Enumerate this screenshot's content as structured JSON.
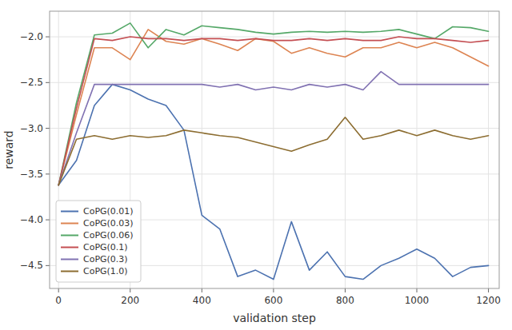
{
  "chart_data": {
    "type": "line",
    "xlabel": "validation step",
    "ylabel": "reward",
    "x": [
      0,
      50,
      100,
      150,
      200,
      250,
      300,
      350,
      400,
      450,
      500,
      550,
      600,
      650,
      700,
      750,
      800,
      850,
      900,
      950,
      1000,
      1050,
      1100,
      1150,
      1200
    ],
    "series": [
      {
        "name": "CoPG(0.01)",
        "color": "#4c72b0",
        "values": [
          -3.62,
          -3.35,
          -2.75,
          -2.52,
          -2.58,
          -2.68,
          -2.75,
          -3.02,
          -3.95,
          -4.1,
          -4.62,
          -4.55,
          -4.65,
          -4.02,
          -4.55,
          -4.35,
          -4.62,
          -4.65,
          -4.5,
          -4.42,
          -4.32,
          -4.42,
          -4.62,
          -4.52,
          -4.5
        ]
      },
      {
        "name": "CoPG(0.03)",
        "color": "#dd8452",
        "values": [
          -3.62,
          -2.85,
          -2.12,
          -2.12,
          -2.25,
          -1.92,
          -2.05,
          -2.08,
          -2.02,
          -2.08,
          -2.15,
          -2.02,
          -2.05,
          -2.18,
          -2.12,
          -2.18,
          -2.22,
          -2.12,
          -2.12,
          -2.06,
          -2.12,
          -2.06,
          -2.12,
          -2.22,
          -2.32
        ]
      },
      {
        "name": "CoPG(0.06)",
        "color": "#55a868",
        "values": [
          -3.62,
          -2.72,
          -1.98,
          -1.96,
          -1.85,
          -2.12,
          -1.92,
          -1.98,
          -1.88,
          -1.9,
          -1.92,
          -1.95,
          -1.97,
          -1.95,
          -1.94,
          -1.95,
          -1.94,
          -1.95,
          -1.94,
          -1.92,
          -1.97,
          -2.02,
          -1.89,
          -1.9,
          -1.94
        ]
      },
      {
        "name": "CoPG(0.1)",
        "color": "#c44e52",
        "values": [
          -3.62,
          -2.78,
          -2.02,
          -2.04,
          -2.0,
          -2.02,
          -2.02,
          -2.04,
          -2.02,
          -2.02,
          -2.04,
          -2.02,
          -2.04,
          -2.04,
          -2.02,
          -2.04,
          -2.02,
          -2.04,
          -2.04,
          -2.0,
          -2.02,
          -2.02,
          -2.04,
          -2.06,
          -2.04
        ]
      },
      {
        "name": "CoPG(0.3)",
        "color": "#8172b2",
        "values": [
          -3.62,
          -3.05,
          -2.52,
          -2.52,
          -2.52,
          -2.52,
          -2.52,
          -2.52,
          -2.52,
          -2.55,
          -2.52,
          -2.58,
          -2.55,
          -2.58,
          -2.52,
          -2.55,
          -2.52,
          -2.58,
          -2.38,
          -2.52,
          -2.52,
          -2.52,
          -2.52,
          -2.52,
          -2.52
        ]
      },
      {
        "name": "CoPG(1.0)",
        "color": "#8c6d31",
        "values": [
          -3.62,
          -3.12,
          -3.08,
          -3.12,
          -3.08,
          -3.1,
          -3.08,
          -3.02,
          -3.05,
          -3.08,
          -3.1,
          -3.15,
          -3.2,
          -3.25,
          -3.18,
          -3.12,
          -2.88,
          -3.12,
          -3.08,
          -3.02,
          -3.08,
          -3.02,
          -3.08,
          -3.12,
          -3.08
        ]
      }
    ],
    "xlim": [
      -25,
      1230
    ],
    "ylim": [
      -4.75,
      -1.72
    ],
    "xticks": [
      0,
      200,
      400,
      600,
      800,
      1000,
      1200
    ],
    "yticks": [
      {
        "value": -2.0,
        "label": "−2.0"
      },
      {
        "value": -2.5,
        "label": "−2.5"
      },
      {
        "value": -3.0,
        "label": "−3.0"
      },
      {
        "value": -3.5,
        "label": "−3.5"
      },
      {
        "value": -4.0,
        "label": "−4.0"
      },
      {
        "value": -4.5,
        "label": "−4.5"
      }
    ],
    "grid": true,
    "legend": "lower left"
  }
}
